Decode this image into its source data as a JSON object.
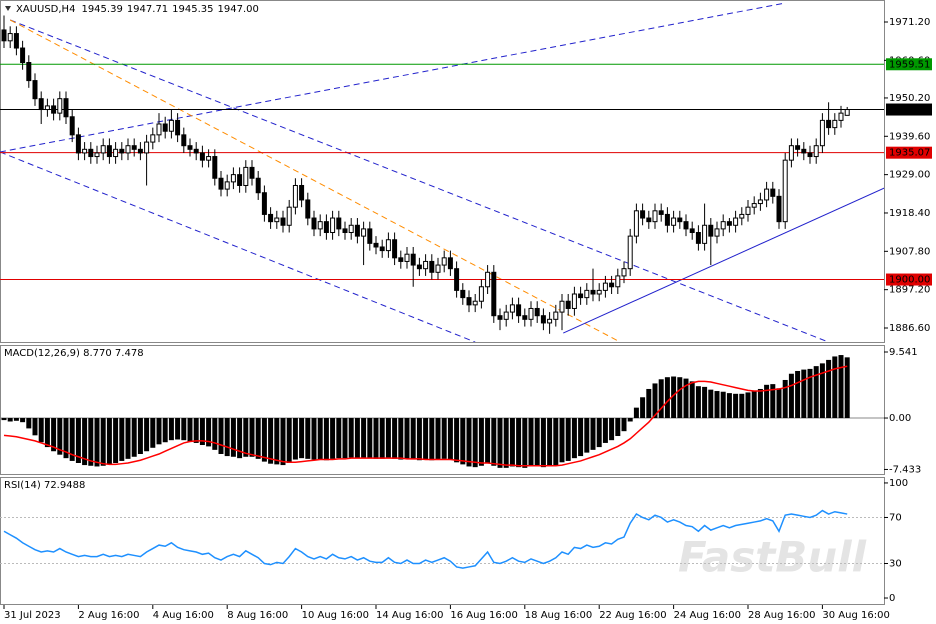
{
  "chart_data": [
    {
      "type": "candlestick",
      "title": "XAUUSD,H4",
      "ohlc_labels": [
        "1945.39",
        "1947.71",
        "1945.35",
        "1947.00"
      ],
      "watermark": "FastBull",
      "categories": [
        "31 Jul 2023",
        null,
        null,
        null,
        null,
        null,
        null,
        null,
        null,
        null,
        null,
        null,
        "2 Aug 16:00",
        null,
        null,
        null,
        null,
        null,
        null,
        null,
        null,
        null,
        null,
        null,
        "4 Aug 16:00",
        null,
        null,
        null,
        null,
        null,
        null,
        null,
        null,
        null,
        null,
        null,
        "8 Aug 16:00",
        null,
        null,
        null,
        null,
        null,
        null,
        null,
        null,
        null,
        null,
        null,
        "10 Aug 16:00",
        null,
        null,
        null,
        null,
        null,
        null,
        null,
        null,
        null,
        null,
        null,
        "14 Aug 16:00",
        null,
        null,
        null,
        null,
        null,
        null,
        null,
        null,
        null,
        null,
        null,
        "16 Aug 16:00",
        null,
        null,
        null,
        null,
        null,
        null,
        null,
        null,
        null,
        null,
        null,
        "18 Aug 16:00",
        null,
        null,
        null,
        null,
        null,
        null,
        null,
        null,
        null,
        null,
        null,
        "22 Aug 16:00",
        null,
        null,
        null,
        null,
        null,
        null,
        null,
        null,
        null,
        null,
        null,
        "24 Aug 16:00",
        null,
        null,
        null,
        null,
        null,
        null,
        null,
        null,
        null,
        null,
        null,
        "28 Aug 16:00",
        null,
        null,
        null,
        null,
        null,
        null,
        null,
        null,
        null,
        null,
        null,
        "30 Aug 16:00",
        null,
        null,
        null,
        null
      ],
      "open": [
        1969,
        1966,
        1968,
        1964,
        1960,
        1955,
        1950,
        1947,
        1948,
        1946,
        1950,
        1945,
        1940,
        1935,
        1936,
        1934,
        1935,
        1937,
        1934,
        1936,
        1935,
        1937,
        1936,
        1935,
        1938,
        1940,
        1943,
        1941,
        1944,
        1940,
        1937,
        1936,
        1935,
        1933,
        1934,
        1928,
        1925,
        1927,
        1929,
        1926,
        1931,
        1928,
        1924,
        1918,
        1916,
        1917,
        1915,
        1920,
        1926,
        1922,
        1917,
        1914,
        1916,
        1913,
        1917,
        1914,
        1913,
        1915,
        1912,
        1914,
        1910,
        1909,
        1908,
        1911,
        1906,
        1905,
        1907,
        1904,
        1903,
        1905,
        1902,
        1904,
        1906,
        1903,
        1897,
        1895,
        1893,
        1894,
        1898,
        1902,
        1890,
        1889,
        1891,
        1893,
        1890,
        1889,
        1892,
        1890,
        1888,
        1889,
        1891,
        1894,
        1892,
        1896,
        1895,
        1897,
        1896,
        1897,
        1899,
        1898,
        1901,
        1903,
        1912,
        1919,
        1917,
        1916,
        1919,
        1918,
        1915,
        1917,
        1916,
        1914,
        1913,
        1910,
        1915,
        1912,
        1914,
        1916,
        1915,
        1917,
        1918,
        1920,
        1921,
        1922,
        1925,
        1923,
        1916,
        1933,
        1937,
        1936,
        1935,
        1934,
        1937,
        1944,
        1942,
        1944,
        1945.39
      ],
      "high": [
        1973,
        1970,
        1970,
        1966,
        1962,
        1957,
        1952,
        1950,
        1950,
        1952,
        1952,
        1947,
        1942,
        1938,
        1938,
        1937,
        1939,
        1939,
        1938,
        1938,
        1939,
        1939,
        1938,
        1940,
        1942,
        1946,
        1945,
        1947,
        1946,
        1942,
        1939,
        1938,
        1937,
        1936,
        1936,
        1930,
        1929,
        1931,
        1931,
        1933,
        1933,
        1930,
        1926,
        1920,
        1919,
        1919,
        1922,
        1928,
        1928,
        1924,
        1919,
        1918,
        1918,
        1919,
        1919,
        1916,
        1917,
        1917,
        1916,
        1916,
        1912,
        1911,
        1913,
        1913,
        1908,
        1909,
        1909,
        1906,
        1907,
        1907,
        1906,
        1908,
        1908,
        1905,
        1899,
        1897,
        1896,
        1900,
        1904,
        1904,
        1892,
        1893,
        1895,
        1895,
        1892,
        1894,
        1894,
        1892,
        1891,
        1893,
        1896,
        1896,
        1898,
        1898,
        1899,
        1903,
        1899,
        1901,
        1901,
        1903,
        1905,
        1914,
        1921,
        1921,
        1919,
        1921,
        1921,
        1920,
        1919,
        1919,
        1918,
        1916,
        1915,
        1921,
        1917,
        1916,
        1918,
        1917,
        1919,
        1920,
        1922,
        1923,
        1924,
        1927,
        1927,
        1925,
        1935,
        1939,
        1939,
        1938,
        1937,
        1939,
        1946,
        1949,
        1946,
        1948,
        1947.71
      ],
      "low": [
        1964,
        1964,
        1962,
        1958,
        1953,
        1948,
        1943,
        1945,
        1944,
        1944,
        1943,
        1938,
        1933,
        1933,
        1932,
        1932,
        1933,
        1932,
        1932,
        1933,
        1933,
        1934,
        1933,
        1926,
        1936,
        1938,
        1939,
        1939,
        1938,
        1935,
        1934,
        1933,
        1931,
        1931,
        1926,
        1923,
        1923,
        1925,
        1924,
        1924,
        1926,
        1922,
        1916,
        1914,
        1914,
        1913,
        1913,
        1918,
        1920,
        1915,
        1912,
        1912,
        1911,
        1911,
        1912,
        1911,
        1911,
        1910,
        1904,
        1908,
        1907,
        1906,
        1906,
        1904,
        1903,
        1903,
        1898,
        1901,
        1901,
        1900,
        1900,
        1902,
        1901,
        1895,
        1893,
        1891,
        1891,
        1892,
        1896,
        1888,
        1886,
        1887,
        1889,
        1888,
        1887,
        1887,
        1888,
        1886,
        1885,
        1887,
        1886,
        1890,
        1890,
        1893,
        1893,
        1894,
        1894,
        1895,
        1896,
        1896,
        1899,
        1901,
        1910,
        1915,
        1914,
        1914,
        1916,
        1913,
        1913,
        1914,
        1912,
        1911,
        1908,
        1908,
        1904,
        1910,
        1912,
        1913,
        1913,
        1915,
        1916,
        1918,
        1919,
        1920,
        1921,
        1914,
        1914,
        1931,
        1934,
        1933,
        1932,
        1932,
        1935,
        1940,
        1940,
        1942,
        1945.35
      ],
      "close": [
        1966,
        1968,
        1964,
        1960,
        1955,
        1950,
        1947,
        1948,
        1946,
        1950,
        1945,
        1940,
        1935,
        1936,
        1934,
        1935,
        1937,
        1934,
        1936,
        1935,
        1937,
        1936,
        1935,
        1938,
        1940,
        1943,
        1941,
        1944,
        1940,
        1937,
        1936,
        1935,
        1933,
        1934,
        1928,
        1925,
        1927,
        1929,
        1926,
        1931,
        1928,
        1924,
        1918,
        1916,
        1917,
        1915,
        1920,
        1926,
        1922,
        1917,
        1914,
        1916,
        1913,
        1917,
        1914,
        1913,
        1915,
        1912,
        1914,
        1910,
        1909,
        1908,
        1911,
        1906,
        1905,
        1907,
        1904,
        1903,
        1905,
        1902,
        1904,
        1906,
        1903,
        1897,
        1895,
        1893,
        1894,
        1898,
        1902,
        1890,
        1889,
        1891,
        1893,
        1890,
        1889,
        1892,
        1890,
        1888,
        1889,
        1891,
        1894,
        1892,
        1896,
        1895,
        1897,
        1896,
        1897,
        1899,
        1898,
        1901,
        1903,
        1912,
        1919,
        1917,
        1916,
        1919,
        1918,
        1915,
        1917,
        1916,
        1914,
        1913,
        1910,
        1915,
        1912,
        1914,
        1916,
        1915,
        1917,
        1918,
        1920,
        1921,
        1922,
        1925,
        1923,
        1916,
        1933,
        1937,
        1936,
        1935,
        1934,
        1937,
        1944,
        1942,
        1944,
        1946,
        1947
      ],
      "up_color": "#ffffff",
      "down_color": "#000000",
      "outline_color": "#000000",
      "ylim": [
        1882.73,
        1977.28
      ],
      "yticks": [
        {
          "value": 1971.2,
          "label": "1971.20"
        },
        {
          "value": 1960.6,
          "label": "1960.60"
        },
        {
          "value": 1950.2,
          "label": "1950.20"
        },
        {
          "value": 1939.6,
          "label": "1939.60"
        },
        {
          "value": 1929,
          "label": "1929.00"
        },
        {
          "value": 1918.4,
          "label": "1918.40"
        },
        {
          "value": 1907.8,
          "label": "1907.80"
        },
        {
          "value": 1897.2,
          "label": "1897.20"
        },
        {
          "value": 1886.6,
          "label": "1886.60"
        }
      ],
      "levels": [
        {
          "price": 1959.51,
          "color": "#009900",
          "text_color": "#000000"
        },
        {
          "price": 1947,
          "label": "1947.00",
          "color": "#000000",
          "text_color": "#ffffff"
        },
        {
          "price": 1935.07,
          "color": "#e00000",
          "text_color": "#ffffff"
        },
        {
          "price": 1900,
          "label": "1900.00",
          "color": "#e00000",
          "text_color": "#ffffff"
        }
      ],
      "trendlines": [
        {
          "x": [
            -0.65,
            126
          ],
          "y": [
            1935.26,
            1976.45
          ],
          "color": "#2222cc",
          "dashed": true
        },
        {
          "x": [
            1,
            133
          ],
          "y": [
            1971.75,
            1882.7
          ],
          "color": "#2222cc",
          "dashed": true
        },
        {
          "x": [
            -0.65,
            76
          ],
          "y": [
            1935.26,
            1882.7
          ],
          "color": "#2222cc",
          "dashed": true
        },
        {
          "x": [
            1,
            99.4
          ],
          "y": [
            1971.75,
            1882.7
          ],
          "color": "#ff8c00",
          "dashed": true
        },
        {
          "x": [
            90.2,
            142
          ],
          "y": [
            1885.2,
            1925.3
          ],
          "color": "#2222cc",
          "dashed": false
        }
      ]
    },
    {
      "type": "bar",
      "title": "MACD(12,26,9) 8.770 7.478",
      "color": "#000000",
      "values": [
        -0.3,
        -0.5,
        -0.4,
        -0.6,
        -1.5,
        -2.5,
        -3.5,
        -4.2,
        -4.8,
        -5.3,
        -5.8,
        -6.2,
        -6.5,
        -6.8,
        -6.9,
        -7.0,
        -6.9,
        -6.7,
        -6.5,
        -6.2,
        -5.9,
        -5.6,
        -5.2,
        -4.8,
        -4.3,
        -3.8,
        -3.5,
        -3.2,
        -3.1,
        -3.2,
        -3.4,
        -3.6,
        -3.9,
        -4.1,
        -4.6,
        -5.2,
        -5.5,
        -5.6,
        -5.8,
        -5.6,
        -5.6,
        -5.9,
        -6.3,
        -6.6,
        -6.7,
        -6.8,
        -6.5,
        -6.0,
        -5.8,
        -5.9,
        -6.0,
        -6.0,
        -6.1,
        -5.9,
        -5.8,
        -5.8,
        -5.7,
        -5.8,
        -5.7,
        -5.8,
        -5.9,
        -5.9,
        -5.7,
        -5.9,
        -6.0,
        -5.9,
        -6.0,
        -6.1,
        -6.0,
        -6.1,
        -6.0,
        -5.9,
        -6.0,
        -6.4,
        -6.7,
        -7.0,
        -7.1,
        -6.9,
        -6.5,
        -6.9,
        -7.2,
        -7.2,
        -7.0,
        -7.1,
        -7.2,
        -7.0,
        -7.0,
        -7.1,
        -7.0,
        -6.8,
        -6.4,
        -6.2,
        -5.8,
        -5.5,
        -5.0,
        -4.6,
        -4.2,
        -3.6,
        -3.2,
        -2.6,
        -1.9,
        -0.5,
        1.5,
        3.0,
        4.2,
        5.0,
        5.6,
        5.9,
        6.0,
        5.9,
        5.7,
        5.3,
        4.6,
        4.5,
        4.1,
        3.9,
        3.8,
        3.6,
        3.5,
        3.5,
        3.7,
        3.9,
        4.2,
        4.8,
        4.9,
        4.3,
        5.5,
        6.4,
        6.8,
        7.0,
        7.1,
        7.5,
        7.9,
        8.4,
        8.9,
        9.1,
        8.77
      ],
      "signal": {
        "color": "#ff0000",
        "values": [
          -2.5,
          -2.6,
          -2.7,
          -2.9,
          -3.1,
          -3.3,
          -3.6,
          -3.9,
          -4.2,
          -4.6,
          -4.9,
          -5.3,
          -5.6,
          -5.9,
          -6.2,
          -6.4,
          -6.6,
          -6.7,
          -6.7,
          -6.6,
          -6.5,
          -6.3,
          -6.1,
          -5.8,
          -5.5,
          -5.2,
          -4.8,
          -4.4,
          -4.0,
          -3.6,
          -3.4,
          -3.3,
          -3.3,
          -3.4,
          -3.6,
          -3.9,
          -4.2,
          -4.5,
          -4.8,
          -5.1,
          -5.3,
          -5.5,
          -5.7,
          -5.9,
          -6.1,
          -6.3,
          -6.4,
          -6.4,
          -6.3,
          -6.2,
          -6.1,
          -6.0,
          -6.0,
          -6.0,
          -5.9,
          -5.9,
          -5.8,
          -5.8,
          -5.8,
          -5.8,
          -5.8,
          -5.8,
          -5.8,
          -5.8,
          -5.8,
          -5.9,
          -5.9,
          -5.9,
          -6.0,
          -6.0,
          -6.0,
          -6.0,
          -6.0,
          -6.1,
          -6.2,
          -6.3,
          -6.4,
          -6.5,
          -6.5,
          -6.6,
          -6.7,
          -6.8,
          -6.8,
          -6.9,
          -6.9,
          -6.9,
          -6.9,
          -6.9,
          -6.9,
          -6.9,
          -6.8,
          -6.6,
          -6.4,
          -6.2,
          -5.9,
          -5.6,
          -5.3,
          -4.9,
          -4.5,
          -4.1,
          -3.6,
          -3.0,
          -2.2,
          -1.4,
          -0.6,
          0.4,
          1.4,
          2.4,
          3.3,
          4.1,
          4.7,
          5.1,
          5.3,
          5.3,
          5.2,
          5.0,
          4.8,
          4.6,
          4.4,
          4.2,
          4.0,
          3.9,
          3.9,
          4.0,
          4.1,
          4.2,
          4.4,
          4.7,
          5.1,
          5.5,
          5.9,
          6.2,
          6.5,
          6.8,
          7.1,
          7.3,
          7.478
        ]
      },
      "levels": [
        0
      ],
      "ylim": [
        -8.09,
        10.41
      ],
      "yticks": [
        9.541,
        {
          "value": 0,
          "label": "0.00"
        },
        -7.433
      ]
    },
    {
      "type": "line",
      "title": "RSI(14) 72.9488",
      "color": "#1e90ff",
      "values": [
        58,
        55,
        52,
        48,
        45,
        42,
        40,
        41,
        40,
        43,
        40,
        38,
        36,
        37,
        36,
        36,
        38,
        36,
        37,
        36,
        38,
        37,
        36,
        40,
        43,
        46,
        45,
        48,
        44,
        42,
        41,
        40,
        38,
        39,
        35,
        33,
        36,
        38,
        36,
        41,
        38,
        35,
        30,
        29,
        31,
        30,
        36,
        43,
        40,
        36,
        34,
        36,
        34,
        38,
        35,
        34,
        36,
        33,
        35,
        32,
        31,
        31,
        35,
        31,
        30,
        33,
        30,
        30,
        33,
        31,
        33,
        35,
        32,
        27,
        26,
        27,
        28,
        34,
        40,
        31,
        30,
        32,
        35,
        32,
        31,
        34,
        32,
        30,
        32,
        35,
        40,
        38,
        44,
        43,
        46,
        44,
        45,
        48,
        47,
        51,
        53,
        65,
        73,
        70,
        68,
        72,
        70,
        66,
        68,
        66,
        63,
        62,
        58,
        63,
        59,
        61,
        63,
        61,
        63,
        64,
        65,
        66,
        67,
        69,
        67,
        58,
        72,
        73,
        72,
        71,
        70,
        72,
        76,
        73,
        75,
        74,
        72.9488
      ],
      "levels": [
        70,
        30
      ],
      "ylim": [
        -5.2,
        104.3
      ],
      "yticks": [
        100,
        70,
        30,
        0
      ]
    }
  ]
}
